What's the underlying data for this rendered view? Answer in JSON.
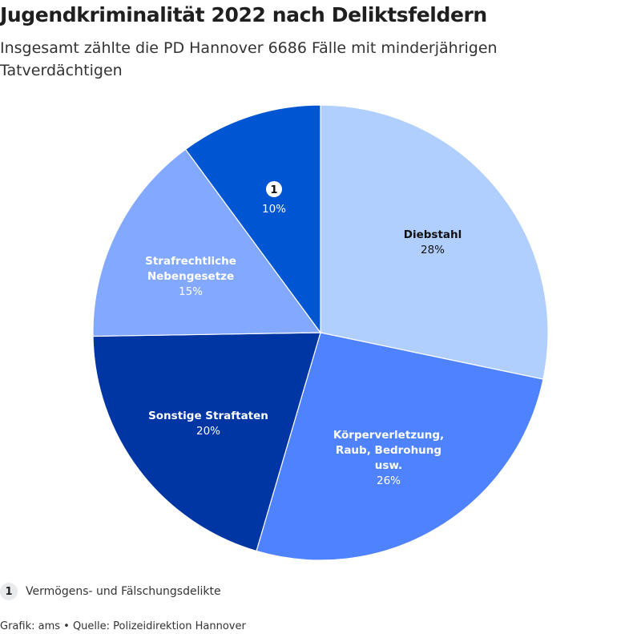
{
  "chart_data": {
    "type": "pie",
    "title": "Jugendkriminalität 2022 nach Deliktsfeldern",
    "subtitle": "Insgesamt zählte die PD Hannover 6686 Fälle mit minderjährigen Tatverdächtigen",
    "slices": [
      {
        "label": "Diebstahl",
        "value": 28,
        "value_label": "28%",
        "color": "#b0cfff",
        "text_color": "#111111"
      },
      {
        "label": "Körperverletzung, Raub, Bedrohung usw.",
        "value": 26,
        "value_label": "26%",
        "color": "#4f82fe",
        "text_color": "#ffffff"
      },
      {
        "label": "Sonstige Straftaten",
        "value": 20,
        "value_label": "20%",
        "color": "#0035a4",
        "text_color": "#ffffff"
      },
      {
        "label": "Strafrechtliche Nebengesetze",
        "value": 15,
        "value_label": "15%",
        "color": "#82a9ff",
        "text_color": "#ffffff"
      },
      {
        "label": "1",
        "value": 10,
        "value_label": "10%",
        "color": "#0055d2",
        "text_color": "#ffffff",
        "badge": true
      }
    ]
  },
  "footnote": {
    "marker": "1",
    "text": "Vermögens- und Fälschungsdelikte"
  },
  "credits": "Grafik: ams • Quelle: Polizeidirektion Hannover"
}
